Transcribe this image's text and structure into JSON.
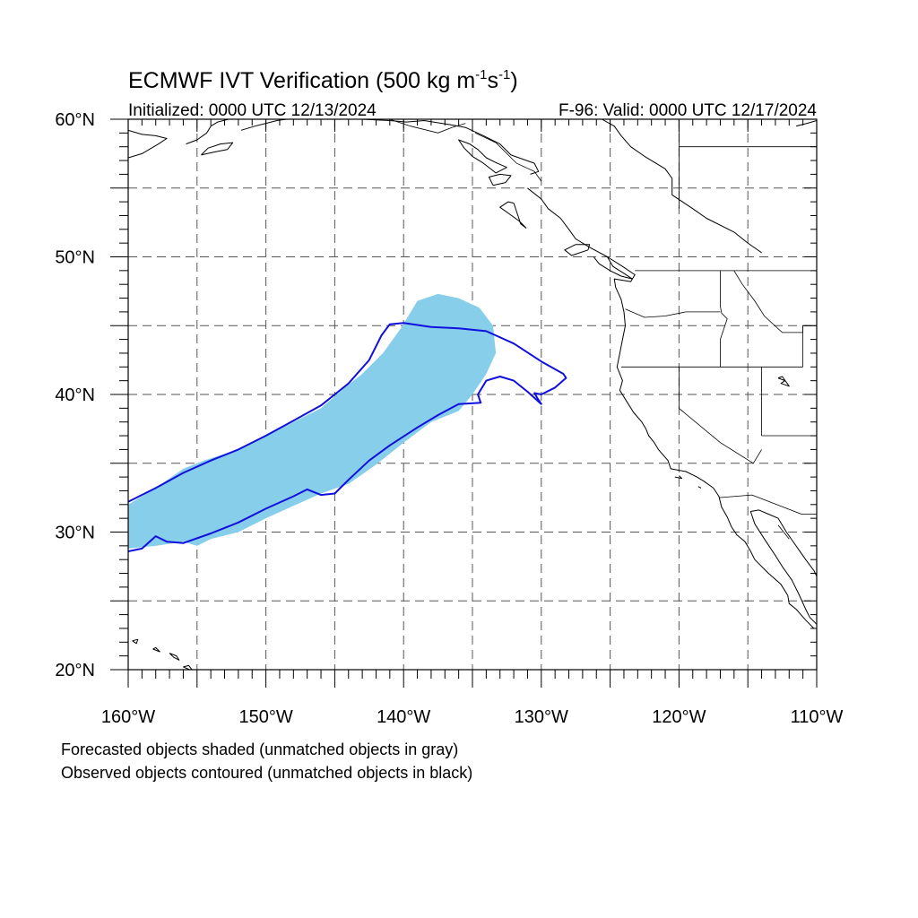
{
  "title": {
    "main": "ECMWF IVT Verification (500 kg m",
    "sup1": "-1",
    "mid": "s",
    "sup2": "-1",
    "end": ")"
  },
  "subtitle_left": "Initialized: 0000 UTC 12/13/2024",
  "subtitle_right": "F-96: Valid: 0000 UTC 12/17/2024",
  "lat_labels": [
    {
      "value": 60,
      "label": "60°N"
    },
    {
      "value": 50,
      "label": "50°N"
    },
    {
      "value": 40,
      "label": "40°N"
    },
    {
      "value": 30,
      "label": "30°N"
    },
    {
      "value": 20,
      "label": "20°N"
    }
  ],
  "lon_labels": [
    {
      "value": -160,
      "label": "160°W"
    },
    {
      "value": -150,
      "label": "150°W"
    },
    {
      "value": -140,
      "label": "140°W"
    },
    {
      "value": -130,
      "label": "130°W"
    },
    {
      "value": -120,
      "label": "120°W"
    },
    {
      "value": -110,
      "label": "110°W"
    }
  ],
  "map_extent": {
    "lon_min": -160,
    "lon_max": -110,
    "lat_min": 20,
    "lat_max": 60
  },
  "grid_spacing_deg": 5,
  "colors": {
    "forecast_fill": "#87ceeb",
    "observed_contour": "#1010dd",
    "coastline": "#000000",
    "grid": "#555555"
  },
  "notes": [
    "Forecasted objects shaded (unmatched objects in gray)",
    "Observed objects contoured (unmatched objects in black)"
  ],
  "forecast_object": [
    [
      -160,
      32.0
    ],
    [
      -158,
      33.2
    ],
    [
      -156,
      34.6
    ],
    [
      -154.5,
      35.2
    ],
    [
      -152,
      36.0
    ],
    [
      -150,
      37.0
    ],
    [
      -148,
      38.0
    ],
    [
      -146,
      39.0
    ],
    [
      -144.5,
      40.3
    ],
    [
      -143,
      41.5
    ],
    [
      -141.5,
      43.0
    ],
    [
      -140.2,
      44.8
    ],
    [
      -139,
      46.8
    ],
    [
      -137.5,
      47.3
    ],
    [
      -136,
      47.0
    ],
    [
      -134.5,
      46.3
    ],
    [
      -133.5,
      45.0
    ],
    [
      -133.3,
      43.0
    ],
    [
      -134,
      41.5
    ],
    [
      -135,
      40.0
    ],
    [
      -136,
      38.8
    ],
    [
      -138,
      38.0
    ],
    [
      -140,
      36.5
    ],
    [
      -142,
      34.9
    ],
    [
      -144,
      33.5
    ],
    [
      -146,
      32.8
    ],
    [
      -148,
      31.9
    ],
    [
      -150,
      31.0
    ],
    [
      -152,
      30.0
    ],
    [
      -154,
      29.5
    ],
    [
      -155,
      29.0
    ],
    [
      -156,
      29.3
    ],
    [
      -158,
      29.0
    ],
    [
      -160,
      28.8
    ]
  ],
  "observed_object": [
    [
      -160,
      32.2
    ],
    [
      -158,
      33.2
    ],
    [
      -156,
      34.3
    ],
    [
      -154,
      35.2
    ],
    [
      -152,
      36.0
    ],
    [
      -150,
      37.0
    ],
    [
      -148,
      38.1
    ],
    [
      -146,
      39.2
    ],
    [
      -144,
      40.8
    ],
    [
      -142.5,
      42.5
    ],
    [
      -141.6,
      44.3
    ],
    [
      -141,
      45.1
    ],
    [
      -140,
      45.2
    ],
    [
      -138,
      44.9
    ],
    [
      -136,
      44.8
    ],
    [
      -134,
      44.6
    ],
    [
      -132,
      43.7
    ],
    [
      -130,
      42.4
    ],
    [
      -128.4,
      41.5
    ],
    [
      -128.2,
      41.2
    ],
    [
      -129,
      40.5
    ],
    [
      -130,
      40.0
    ],
    [
      -130.5,
      40.1
    ],
    [
      -130.2,
      39.6
    ],
    [
      -130,
      39.3
    ],
    [
      -131,
      40.2
    ],
    [
      -132,
      41.0
    ],
    [
      -133,
      41.3
    ],
    [
      -134,
      41.0
    ],
    [
      -134.6,
      40.0
    ],
    [
      -134.4,
      39.4
    ],
    [
      -136,
      39.3
    ],
    [
      -137.5,
      38.5
    ],
    [
      -139,
      37.6
    ],
    [
      -141,
      36.3
    ],
    [
      -142.5,
      35.2
    ],
    [
      -144,
      33.8
    ],
    [
      -145,
      32.8
    ],
    [
      -146,
      32.7
    ],
    [
      -147,
      33.1
    ],
    [
      -148,
      32.6
    ],
    [
      -150,
      31.7
    ],
    [
      -152,
      30.7
    ],
    [
      -154,
      29.9
    ],
    [
      -156,
      29.2
    ],
    [
      -157.2,
      29.3
    ],
    [
      -158,
      29.7
    ],
    [
      -159,
      28.8
    ],
    [
      -160,
      28.6
    ]
  ],
  "coastlines": [
    [
      [
        -125.6,
        60
      ],
      [
        -124.7,
        59.5
      ],
      [
        -124.2,
        58.8
      ],
      [
        -123.5,
        58.0
      ],
      [
        -122.5,
        57.3
      ],
      [
        -121,
        56.4
      ],
      [
        -120.5,
        55.7
      ],
      [
        -120.5,
        54.5
      ],
      [
        -119,
        53.5
      ],
      [
        -118,
        52.8
      ],
      [
        -116,
        51.8
      ],
      [
        -115,
        51.0
      ],
      [
        -114,
        50.3
      ]
    ],
    [
      [
        -131,
        55.0
      ],
      [
        -130,
        54.2
      ],
      [
        -129.5,
        53.5
      ],
      [
        -128.6,
        52.8
      ],
      [
        -128.0,
        52.0
      ],
      [
        -127.5,
        51.3
      ],
      [
        -126.5,
        50.7
      ],
      [
        -125.2,
        50.0
      ],
      [
        -124.1,
        49.3
      ],
      [
        -123.2,
        48.7
      ],
      [
        -123.5,
        48.2
      ],
      [
        -124.7,
        48.4
      ],
      [
        -124.6,
        47.8
      ],
      [
        -124.2,
        46.9
      ],
      [
        -124.0,
        46.0
      ],
      [
        -123.9,
        45.0
      ],
      [
        -124.1,
        44.0
      ],
      [
        -124.3,
        43.0
      ],
      [
        -124.5,
        42.0
      ],
      [
        -124.1,
        41.0
      ],
      [
        -124.3,
        40.3
      ],
      [
        -123.8,
        39.5
      ],
      [
        -123.3,
        38.7
      ],
      [
        -122.7,
        38.0
      ],
      [
        -122.4,
        37.5
      ],
      [
        -122.2,
        37.0
      ],
      [
        -121.8,
        36.5
      ],
      [
        -121.5,
        36.0
      ],
      [
        -120.8,
        35.2
      ],
      [
        -120.6,
        34.6
      ],
      [
        -119.5,
        34.4
      ],
      [
        -118.7,
        34.0
      ],
      [
        -118.2,
        33.7
      ],
      [
        -117.5,
        33.2
      ],
      [
        -117.1,
        32.6
      ],
      [
        -116.9,
        31.8
      ],
      [
        -116.5,
        31.1
      ],
      [
        -116.2,
        30.4
      ],
      [
        -115.8,
        29.8
      ],
      [
        -115.2,
        29.3
      ],
      [
        -114.8,
        28.6
      ],
      [
        -114.5,
        28.0
      ],
      [
        -114.2,
        27.7
      ],
      [
        -113.5,
        27.0
      ],
      [
        -112.6,
        26.2
      ],
      [
        -112.1,
        25.4
      ],
      [
        -112.0,
        24.8
      ],
      [
        -111.5,
        24.4
      ],
      [
        -110.8,
        23.6
      ],
      [
        -110.2,
        23.0
      ]
    ],
    [
      [
        -110.0,
        23.3
      ],
      [
        -110.5,
        23.8
      ],
      [
        -110.8,
        24.4
      ],
      [
        -111.3,
        25.5
      ],
      [
        -111.8,
        26.5
      ],
      [
        -112.5,
        27.5
      ],
      [
        -113.0,
        28.3
      ],
      [
        -113.8,
        29.5
      ],
      [
        -114.5,
        30.6
      ],
      [
        -114.8,
        31.5
      ],
      [
        -114.2,
        31.6
      ],
      [
        -113.5,
        31.3
      ],
      [
        -112.8,
        31.0
      ],
      [
        -112.2,
        30.0
      ],
      [
        -111.5,
        29.0
      ],
      [
        -110.8,
        28.0
      ],
      [
        -110.2,
        27.2
      ],
      [
        -110.0,
        26.8
      ]
    ],
    [
      [
        -126.6,
        50.5
      ],
      [
        -127.8,
        50.1
      ],
      [
        -128.3,
        50.5
      ],
      [
        -127.5,
        50.9
      ],
      [
        -126.5,
        50.9
      ],
      [
        -126.6,
        50.5
      ]
    ],
    [
      [
        -125.2,
        50.0
      ],
      [
        -124.8,
        49.3
      ],
      [
        -124.0,
        48.8
      ],
      [
        -123.4,
        48.4
      ],
      [
        -124.2,
        48.6
      ],
      [
        -125.0,
        49.0
      ],
      [
        -125.8,
        49.5
      ],
      [
        -126.2,
        50.0
      ]
    ],
    [
      [
        -132,
        53.9
      ],
      [
        -131.7,
        53.0
      ],
      [
        -131.5,
        52.4
      ],
      [
        -131.1,
        52.1
      ],
      [
        -131.6,
        52.6
      ],
      [
        -132.3,
        53.1
      ],
      [
        -133.0,
        53.6
      ],
      [
        -132.4,
        54.0
      ],
      [
        -132,
        53.9
      ]
    ],
    [
      [
        -130.8,
        56.0
      ],
      [
        -130.2,
        56.2
      ],
      [
        -130.5,
        56.8
      ],
      [
        -132.2,
        57.4
      ],
      [
        -133.0,
        58.2
      ],
      [
        -134.2,
        58.8
      ],
      [
        -135.5,
        59.4
      ],
      [
        -136.6,
        59.6
      ],
      [
        -138.5,
        59.9
      ],
      [
        -139.8,
        59.8
      ],
      [
        -141,
        59.9
      ],
      [
        -143,
        60.0
      ]
    ],
    [
      [
        -132.5,
        56.5
      ],
      [
        -133.2,
        56.8
      ],
      [
        -134.0,
        57.2
      ],
      [
        -134.6,
        57.8
      ],
      [
        -135.2,
        58.2
      ],
      [
        -136.0,
        58.5
      ],
      [
        -135.6,
        57.9
      ],
      [
        -135.0,
        57.3
      ],
      [
        -134.2,
        56.8
      ],
      [
        -133.3,
        56.1
      ],
      [
        -132.5,
        56.5
      ]
    ],
    [
      [
        -133.5,
        55.2
      ],
      [
        -132.6,
        55.4
      ],
      [
        -132.2,
        55.9
      ],
      [
        -133.0,
        56.0
      ],
      [
        -133.8,
        55.8
      ],
      [
        -133.5,
        55.2
      ]
    ],
    [
      [
        -160,
        57.2
      ],
      [
        -159,
        57.5
      ],
      [
        -157.8,
        58.2
      ],
      [
        -157.2,
        58.6
      ],
      [
        -158,
        58.8
      ],
      [
        -159,
        58.9
      ],
      [
        -160,
        59.2
      ]
    ],
    [
      [
        -155.8,
        58.2
      ],
      [
        -155.0,
        58.5
      ],
      [
        -154.3,
        59.0
      ],
      [
        -154.0,
        59.5
      ],
      [
        -153.5,
        59.8
      ],
      [
        -152.7,
        60.0
      ]
    ],
    [
      [
        -154.7,
        57.4
      ],
      [
        -153.8,
        57.6
      ],
      [
        -152.8,
        57.8
      ],
      [
        -152.4,
        58.3
      ],
      [
        -153.3,
        58.2
      ],
      [
        -154.2,
        57.9
      ],
      [
        -154.7,
        57.4
      ]
    ],
    [
      [
        -151.8,
        59.2
      ],
      [
        -150.8,
        59.5
      ],
      [
        -150.0,
        59.7
      ],
      [
        -149.2,
        59.9
      ],
      [
        -148.5,
        60.0
      ]
    ],
    [
      [
        -111.5,
        59.5
      ],
      [
        -110.7,
        59.7
      ],
      [
        -110,
        59.9
      ]
    ],
    [
      [
        -159.7,
        22.1
      ],
      [
        -159.3,
        22.2
      ],
      [
        -159.4,
        21.9
      ],
      [
        -159.7,
        22.1
      ]
    ],
    [
      [
        -158.2,
        21.5
      ],
      [
        -157.7,
        21.3
      ],
      [
        -158.0,
        21.6
      ],
      [
        -158.2,
        21.5
      ]
    ],
    [
      [
        -157.0,
        21.2
      ],
      [
        -156.7,
        20.9
      ],
      [
        -156.3,
        20.7
      ],
      [
        -156.5,
        21.0
      ],
      [
        -157.0,
        21.2
      ]
    ],
    [
      [
        -156.0,
        20.2
      ],
      [
        -155.3,
        19.9
      ],
      [
        -155.6,
        20.3
      ],
      [
        -156.0,
        20.2
      ]
    ],
    [
      [
        -120.3,
        34.0
      ],
      [
        -119.8,
        33.9
      ],
      [
        -120.0,
        34.1
      ]
    ],
    [
      [
        -118.6,
        33.3
      ],
      [
        -118.4,
        33.2
      ]
    ],
    [
      [
        -112.8,
        41.2
      ],
      [
        -112.3,
        41.0
      ],
      [
        -112.6,
        40.8
      ],
      [
        -112.0,
        40.6
      ],
      [
        -112.5,
        41.3
      ],
      [
        -112.8,
        41.2
      ]
    ]
  ],
  "borders": [
    [
      [
        -123.2,
        49.0
      ],
      [
        -110,
        49.0
      ]
    ],
    [
      [
        -117.0,
        49.0
      ],
      [
        -117.0,
        46.4
      ],
      [
        -116.9,
        45.9
      ],
      [
        -116.5,
        45.5
      ],
      [
        -116.9,
        44.3
      ],
      [
        -117.0,
        44.0
      ],
      [
        -117.0,
        42.0
      ]
    ],
    [
      [
        -123.9,
        46.2
      ],
      [
        -122.5,
        45.6
      ],
      [
        -121,
        45.7
      ],
      [
        -119.5,
        46.0
      ],
      [
        -117,
        46.0
      ]
    ],
    [
      [
        -124.2,
        42.0
      ],
      [
        -111,
        42.0
      ]
    ],
    [
      [
        -120.0,
        42.0
      ],
      [
        -120.0,
        39.0
      ],
      [
        -117.0,
        36.5
      ],
      [
        -114.6,
        35.0
      ]
    ],
    [
      [
        -114.0,
        42.0
      ],
      [
        -114.0,
        37.0
      ]
    ],
    [
      [
        -114.6,
        35.0
      ],
      [
        -114.0,
        36.0
      ]
    ],
    [
      [
        -117.1,
        32.5
      ],
      [
        -114.7,
        32.7
      ],
      [
        -111.1,
        31.3
      ],
      [
        -110,
        31.3
      ]
    ],
    [
      [
        -114.0,
        37.0
      ],
      [
        -110,
        37.0
      ]
    ],
    [
      [
        -111.0,
        45.0
      ],
      [
        -111.0,
        42.0
      ]
    ],
    [
      [
        -116.0,
        49.0
      ],
      [
        -115.4,
        48.0
      ],
      [
        -114.5,
        46.8
      ],
      [
        -113.8,
        45.7
      ],
      [
        -112.5,
        44.5
      ],
      [
        -111.0,
        44.5
      ],
      [
        -111.0,
        45.0
      ],
      [
        -110,
        45.0
      ]
    ],
    [
      [
        -110,
        58.0
      ],
      [
        -120.0,
        58.0
      ]
    ],
    [
      [
        -120.0,
        60.0
      ],
      [
        -120.0,
        53.5
      ]
    ],
    [
      [
        -141.0,
        60.0
      ],
      [
        -139.5,
        59.5
      ],
      [
        -137.5,
        59.0
      ],
      [
        -136.5,
        59.4
      ],
      [
        -135.5,
        59.7
      ]
    ],
    [
      [
        -130.0,
        55.5
      ],
      [
        -130.5,
        56.2
      ],
      [
        -131.8,
        56.8
      ],
      [
        -133.3,
        58.3
      ],
      [
        -134.8,
        59.0
      ]
    ],
    [
      [
        -112.8,
        30.5
      ],
      [
        -112.0,
        29.5
      ]
    ]
  ]
}
